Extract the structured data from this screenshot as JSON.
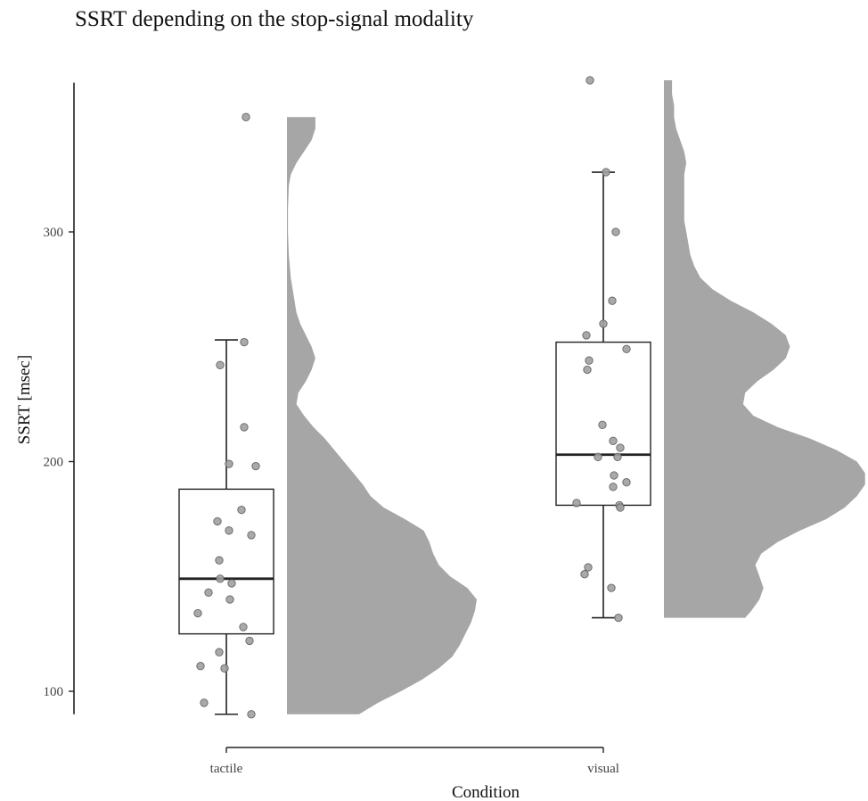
{
  "chart_data": {
    "type": "raincloud",
    "title": "SSRT depending on the stop-signal modality",
    "xlabel": "Condition",
    "ylabel": "SSRT [msec]",
    "categories": [
      "tactile",
      "visual"
    ],
    "yticks": [
      100,
      200,
      300
    ],
    "ylim": [
      90,
      365
    ],
    "grid": false,
    "colors": {
      "density": "#a6a6a6",
      "points": "#a0a0a0",
      "box": "#222222",
      "axis": "#222222"
    },
    "boxplots": [
      {
        "category": "tactile",
        "whisker_low": 90,
        "q1": 125,
        "median": 149,
        "q3": 188,
        "whisker_high": 253
      },
      {
        "category": "visual",
        "whisker_low": 132,
        "q1": 181,
        "median": 203,
        "q3": 252,
        "whisker_high": 326
      }
    ],
    "points": [
      {
        "category": "tactile",
        "jitter": 0.22,
        "y": 350
      },
      {
        "category": "tactile",
        "jitter": 0.2,
        "y": 252
      },
      {
        "category": "tactile",
        "jitter": -0.07,
        "y": 242
      },
      {
        "category": "tactile",
        "jitter": 0.2,
        "y": 215
      },
      {
        "category": "tactile",
        "jitter": 0.03,
        "y": 199
      },
      {
        "category": "tactile",
        "jitter": 0.33,
        "y": 198
      },
      {
        "category": "tactile",
        "jitter": 0.17,
        "y": 179
      },
      {
        "category": "tactile",
        "jitter": -0.1,
        "y": 174
      },
      {
        "category": "tactile",
        "jitter": 0.03,
        "y": 170
      },
      {
        "category": "tactile",
        "jitter": 0.28,
        "y": 168
      },
      {
        "category": "tactile",
        "jitter": -0.08,
        "y": 157
      },
      {
        "category": "tactile",
        "jitter": -0.07,
        "y": 149
      },
      {
        "category": "tactile",
        "jitter": 0.06,
        "y": 147
      },
      {
        "category": "tactile",
        "jitter": -0.2,
        "y": 143
      },
      {
        "category": "tactile",
        "jitter": 0.04,
        "y": 140
      },
      {
        "category": "tactile",
        "jitter": -0.32,
        "y": 134
      },
      {
        "category": "tactile",
        "jitter": 0.19,
        "y": 128
      },
      {
        "category": "tactile",
        "jitter": 0.26,
        "y": 122
      },
      {
        "category": "tactile",
        "jitter": -0.08,
        "y": 117
      },
      {
        "category": "tactile",
        "jitter": -0.29,
        "y": 111
      },
      {
        "category": "tactile",
        "jitter": -0.02,
        "y": 110
      },
      {
        "category": "tactile",
        "jitter": -0.25,
        "y": 95
      },
      {
        "category": "tactile",
        "jitter": 0.28,
        "y": 90
      },
      {
        "category": "visual",
        "jitter": -0.15,
        "y": 366
      },
      {
        "category": "visual",
        "jitter": 0.03,
        "y": 326
      },
      {
        "category": "visual",
        "jitter": 0.14,
        "y": 300
      },
      {
        "category": "visual",
        "jitter": 0.1,
        "y": 270
      },
      {
        "category": "visual",
        "jitter": 0.0,
        "y": 260
      },
      {
        "category": "visual",
        "jitter": -0.19,
        "y": 255
      },
      {
        "category": "visual",
        "jitter": 0.26,
        "y": 249
      },
      {
        "category": "visual",
        "jitter": -0.16,
        "y": 244
      },
      {
        "category": "visual",
        "jitter": -0.18,
        "y": 240
      },
      {
        "category": "visual",
        "jitter": -0.01,
        "y": 216
      },
      {
        "category": "visual",
        "jitter": 0.11,
        "y": 209
      },
      {
        "category": "visual",
        "jitter": 0.19,
        "y": 206
      },
      {
        "category": "visual",
        "jitter": -0.06,
        "y": 202
      },
      {
        "category": "visual",
        "jitter": 0.16,
        "y": 202
      },
      {
        "category": "visual",
        "jitter": 0.12,
        "y": 194
      },
      {
        "category": "visual",
        "jitter": 0.26,
        "y": 191
      },
      {
        "category": "visual",
        "jitter": 0.11,
        "y": 189
      },
      {
        "category": "visual",
        "jitter": -0.3,
        "y": 182
      },
      {
        "category": "visual",
        "jitter": 0.18,
        "y": 181
      },
      {
        "category": "visual",
        "jitter": 0.19,
        "y": 180
      },
      {
        "category": "visual",
        "jitter": -0.17,
        "y": 154
      },
      {
        "category": "visual",
        "jitter": -0.21,
        "y": 151
      },
      {
        "category": "visual",
        "jitter": 0.09,
        "y": 145
      },
      {
        "category": "visual",
        "jitter": 0.17,
        "y": 132
      }
    ],
    "densities": [
      {
        "category": "tactile",
        "range": [
          90,
          350
        ],
        "profile": [
          [
            90,
            0.38
          ],
          [
            95,
            0.48
          ],
          [
            100,
            0.6
          ],
          [
            105,
            0.71
          ],
          [
            110,
            0.8
          ],
          [
            115,
            0.87
          ],
          [
            120,
            0.91
          ],
          [
            125,
            0.94
          ],
          [
            130,
            0.97
          ],
          [
            135,
            0.99
          ],
          [
            140,
            1.0
          ],
          [
            145,
            0.95
          ],
          [
            150,
            0.86
          ],
          [
            155,
            0.8
          ],
          [
            160,
            0.77
          ],
          [
            165,
            0.75
          ],
          [
            170,
            0.72
          ],
          [
            175,
            0.62
          ],
          [
            180,
            0.51
          ],
          [
            185,
            0.44
          ],
          [
            190,
            0.4
          ],
          [
            195,
            0.35
          ],
          [
            200,
            0.3
          ],
          [
            205,
            0.25
          ],
          [
            210,
            0.2
          ],
          [
            215,
            0.14
          ],
          [
            220,
            0.09
          ],
          [
            225,
            0.05
          ],
          [
            230,
            0.06
          ],
          [
            235,
            0.1
          ],
          [
            240,
            0.13
          ],
          [
            245,
            0.15
          ],
          [
            250,
            0.13
          ],
          [
            255,
            0.1
          ],
          [
            260,
            0.07
          ],
          [
            265,
            0.05
          ],
          [
            270,
            0.04
          ],
          [
            280,
            0.02
          ],
          [
            290,
            0.01
          ],
          [
            300,
            0.005
          ],
          [
            310,
            0.005
          ],
          [
            320,
            0.01
          ],
          [
            325,
            0.02
          ],
          [
            330,
            0.05
          ],
          [
            335,
            0.09
          ],
          [
            340,
            0.13
          ],
          [
            345,
            0.15
          ],
          [
            350,
            0.15
          ]
        ]
      },
      {
        "category": "visual",
        "range": [
          132,
          366
        ],
        "profile": [
          [
            132,
            0.4
          ],
          [
            135,
            0.43
          ],
          [
            140,
            0.47
          ],
          [
            145,
            0.49
          ],
          [
            150,
            0.47
          ],
          [
            155,
            0.45
          ],
          [
            160,
            0.48
          ],
          [
            165,
            0.56
          ],
          [
            170,
            0.67
          ],
          [
            175,
            0.8
          ],
          [
            180,
            0.89
          ],
          [
            185,
            0.95
          ],
          [
            190,
            0.99
          ],
          [
            195,
            0.99
          ],
          [
            200,
            0.95
          ],
          [
            205,
            0.85
          ],
          [
            210,
            0.72
          ],
          [
            215,
            0.56
          ],
          [
            220,
            0.44
          ],
          [
            225,
            0.39
          ],
          [
            230,
            0.4
          ],
          [
            235,
            0.46
          ],
          [
            240,
            0.54
          ],
          [
            245,
            0.6
          ],
          [
            250,
            0.62
          ],
          [
            255,
            0.6
          ],
          [
            260,
            0.53
          ],
          [
            265,
            0.44
          ],
          [
            270,
            0.33
          ],
          [
            275,
            0.24
          ],
          [
            280,
            0.18
          ],
          [
            285,
            0.15
          ],
          [
            290,
            0.13
          ],
          [
            295,
            0.12
          ],
          [
            300,
            0.11
          ],
          [
            305,
            0.1
          ],
          [
            310,
            0.1
          ],
          [
            315,
            0.1
          ],
          [
            320,
            0.1
          ],
          [
            325,
            0.1
          ],
          [
            330,
            0.11
          ],
          [
            335,
            0.1
          ],
          [
            340,
            0.08
          ],
          [
            345,
            0.06
          ],
          [
            350,
            0.05
          ],
          [
            355,
            0.05
          ],
          [
            360,
            0.04
          ],
          [
            366,
            0.04
          ]
        ]
      }
    ]
  }
}
